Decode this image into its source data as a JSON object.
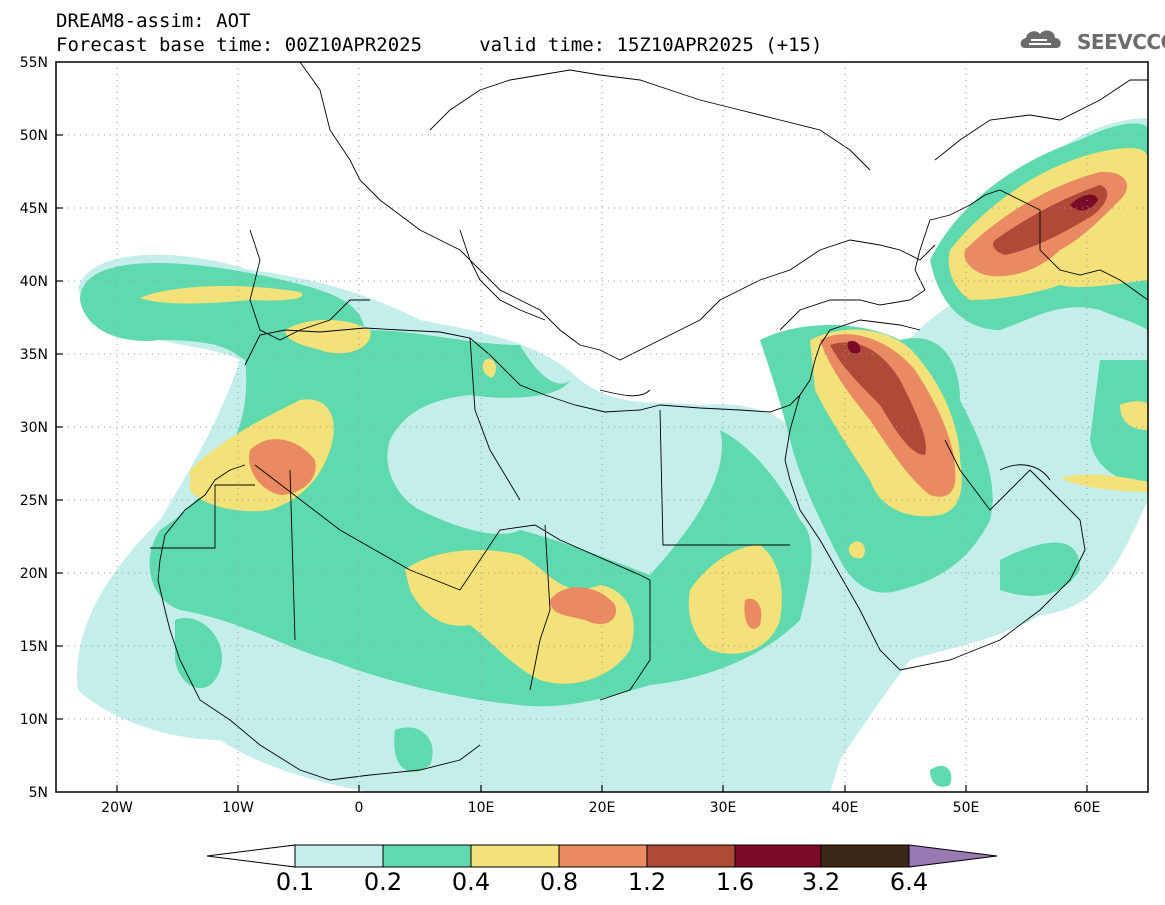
{
  "header": {
    "line1": "DREAM8-assim: AOT",
    "line2": "Forecast base time: 00Z10APR2025     valid time: 15Z10APR2025 (+15)"
  },
  "logo": {
    "text": "SEEVCCC",
    "icon": "cloud-logo-icon",
    "color": "#6b6b6b"
  },
  "map": {
    "lat_labels": [
      "55N",
      "50N",
      "45N",
      "40N",
      "35N",
      "30N",
      "25N",
      "20N",
      "15N",
      "10N",
      "5N"
    ],
    "lon_labels": [
      "20W",
      "10W",
      "0",
      "10E",
      "20E",
      "30E",
      "40E",
      "50E",
      "60E"
    ],
    "lat_range": [
      5,
      55
    ],
    "lon_range": [
      -25,
      65
    ],
    "grid": "dotted"
  },
  "colorbar": {
    "labels": [
      "0.1",
      "0.2",
      "0.4",
      "0.8",
      "1.2",
      "1.6",
      "3.2",
      "6.4"
    ],
    "colors": [
      "#c3eeea",
      "#5fd9ae",
      "#f3e27a",
      "#e98a63",
      "#b04a38",
      "#7a0a26",
      "#3c2818",
      "#9a78b4"
    ],
    "open_ends": [
      "low",
      "high"
    ]
  }
}
